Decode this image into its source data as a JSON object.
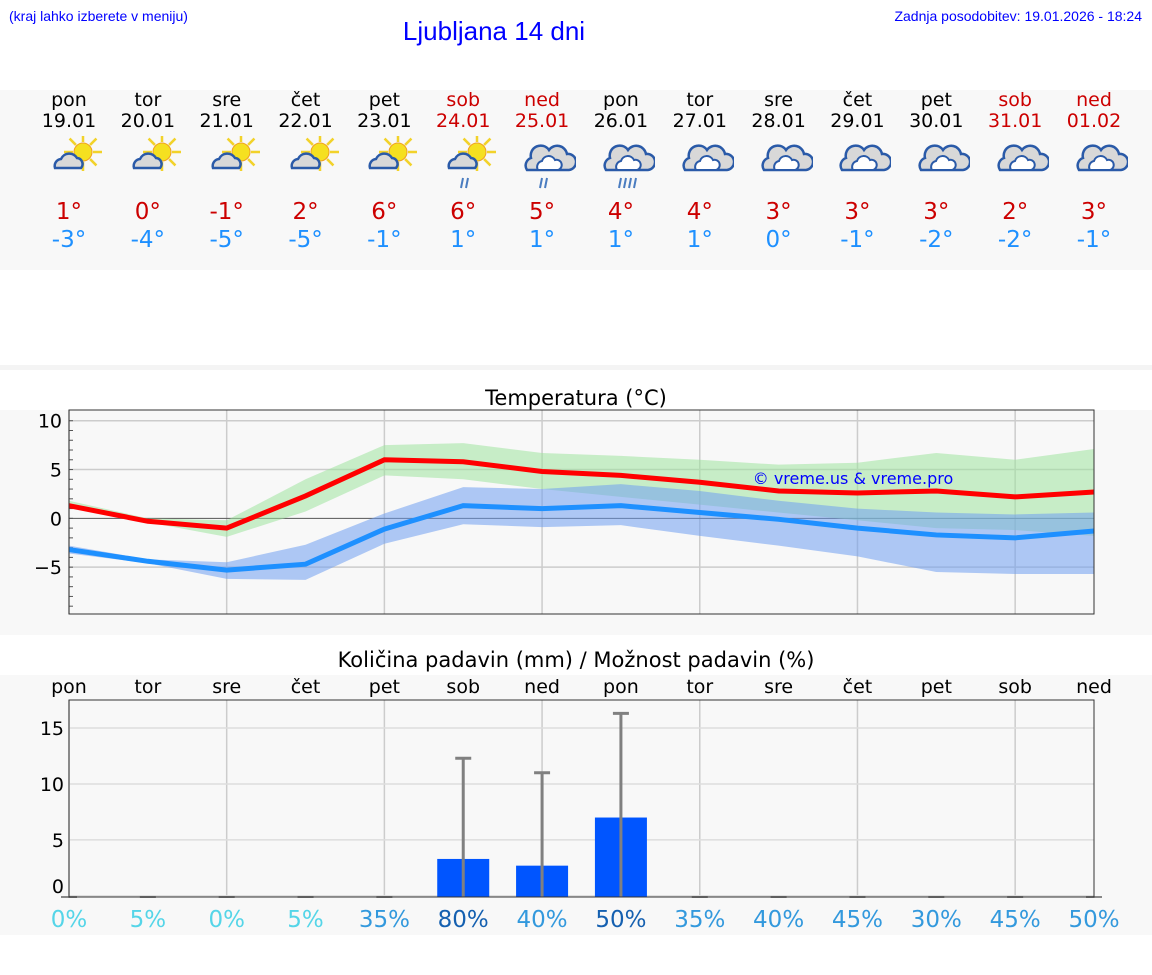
{
  "header": {
    "hint": "(kraj lahko izberete v meniju)",
    "title": "Ljubljana 14 dni",
    "updated": "Zadnja posodobitev: 19.01.2026 - 18:24"
  },
  "days": [
    {
      "name": "pon",
      "date": "19.01",
      "high": "1°",
      "low": "-3°",
      "icon": "partly-cloudy-icon",
      "weekend": false
    },
    {
      "name": "tor",
      "date": "20.01",
      "high": "0°",
      "low": "-4°",
      "icon": "partly-cloudy-icon",
      "weekend": false
    },
    {
      "name": "sre",
      "date": "21.01",
      "high": "-1°",
      "low": "-5°",
      "icon": "partly-cloudy-icon",
      "weekend": false
    },
    {
      "name": "čet",
      "date": "22.01",
      "high": "2°",
      "low": "-5°",
      "icon": "partly-cloudy-icon",
      "weekend": false
    },
    {
      "name": "pet",
      "date": "23.01",
      "high": "6°",
      "low": "-1°",
      "icon": "partly-cloudy-icon",
      "weekend": false
    },
    {
      "name": "sob",
      "date": "24.01",
      "high": "6°",
      "low": "1°",
      "icon": "partly-cloudy-rain-icon",
      "weekend": true
    },
    {
      "name": "ned",
      "date": "25.01",
      "high": "5°",
      "low": "1°",
      "icon": "cloudy-light-rain-icon",
      "weekend": true
    },
    {
      "name": "pon",
      "date": "26.01",
      "high": "4°",
      "low": "1°",
      "icon": "cloudy-rain-icon",
      "weekend": false
    },
    {
      "name": "tor",
      "date": "27.01",
      "high": "4°",
      "low": "1°",
      "icon": "cloudy-icon",
      "weekend": false
    },
    {
      "name": "sre",
      "date": "28.01",
      "high": "3°",
      "low": "0°",
      "icon": "cloudy-icon",
      "weekend": false
    },
    {
      "name": "čet",
      "date": "29.01",
      "high": "3°",
      "low": "-1°",
      "icon": "cloudy-icon",
      "weekend": false
    },
    {
      "name": "pet",
      "date": "30.01",
      "high": "3°",
      "low": "-2°",
      "icon": "cloudy-icon",
      "weekend": false
    },
    {
      "name": "sob",
      "date": "31.01",
      "high": "2°",
      "low": "-2°",
      "icon": "cloudy-icon",
      "weekend": true
    },
    {
      "name": "ned",
      "date": "01.02",
      "high": "3°",
      "low": "-1°",
      "icon": "cloudy-icon",
      "weekend": true
    }
  ],
  "colors": {
    "weekday": "#000000",
    "weekend": "#cc0000",
    "high": "#cc0000",
    "low": "#1e90ff"
  },
  "chart_data": [
    {
      "type": "line",
      "title": "Temperatura (°C)",
      "xlabel": "",
      "ylabel": "",
      "ylim": [
        -9.8,
        11.1
      ],
      "yticks": [
        10,
        5,
        0,
        -5
      ],
      "ytick_labels": [
        "10",
        "5",
        "0",
        "−5"
      ],
      "grid": true,
      "watermark": "© vreme.us & vreme.pro",
      "x": [
        "19.01",
        "20.01",
        "21.01",
        "22.01",
        "23.01",
        "24.01",
        "25.01",
        "26.01",
        "27.01",
        "28.01",
        "29.01",
        "30.01",
        "31.01",
        "01.02"
      ],
      "series": [
        {
          "role": "max",
          "color": "#ff0000",
          "values": [
            1.3,
            -0.3,
            -1.0,
            2.3,
            6.0,
            5.8,
            4.8,
            4.4,
            3.7,
            2.8,
            2.6,
            2.8,
            2.2,
            2.7
          ],
          "band_upper": [
            1.8,
            0.0,
            -0.2,
            4.0,
            7.5,
            7.7,
            6.7,
            6.4,
            6.0,
            5.5,
            5.7,
            6.7,
            6.0,
            7.1
          ],
          "band_lower": [
            1.1,
            -0.4,
            -1.9,
            0.7,
            4.4,
            4.0,
            3.0,
            2.2,
            1.4,
            0.6,
            -0.2,
            -1.0,
            -1.2,
            -1.8
          ],
          "band_color": "#9fe39f"
        },
        {
          "role": "min",
          "color": "#1e90ff",
          "values": [
            -3.2,
            -4.4,
            -5.3,
            -4.7,
            -1.1,
            1.3,
            1.0,
            1.3,
            0.6,
            -0.1,
            -1.0,
            -1.7,
            -2.0,
            -1.3
          ],
          "band_upper": [
            -2.8,
            -4.2,
            -4.5,
            -2.7,
            0.5,
            3.2,
            3.0,
            3.5,
            2.8,
            1.8,
            1.0,
            0.6,
            0.4,
            0.6
          ],
          "band_lower": [
            -3.6,
            -4.6,
            -6.2,
            -6.3,
            -2.6,
            -0.6,
            -0.9,
            -0.7,
            -1.8,
            -2.8,
            -3.9,
            -5.5,
            -5.7,
            -5.7
          ],
          "band_color": "#6f9ff0"
        }
      ]
    },
    {
      "type": "bar",
      "title": "Količina padavin (mm) / Možnost padavin (%)",
      "xlabel": "",
      "ylabel": "",
      "ylim": [
        -0.1,
        17.5
      ],
      "yticks": [
        15,
        10,
        5,
        0
      ],
      "grid": true,
      "categories": [
        "pon",
        "tor",
        "sre",
        "čet",
        "pet",
        "sob",
        "ned",
        "pon",
        "tor",
        "sre",
        "čet",
        "pet",
        "sob",
        "ned"
      ],
      "values": [
        0,
        0,
        0,
        0,
        0,
        3.3,
        2.7,
        7.0,
        0,
        0,
        0,
        0,
        0,
        0
      ],
      "error_max": [
        0,
        0,
        0,
        0,
        0,
        12.3,
        11.0,
        16.3,
        0,
        0,
        0,
        0,
        0,
        0
      ],
      "probability": [
        "0%",
        "5%",
        "0%",
        "5%",
        "35%",
        "80%",
        "40%",
        "50%",
        "35%",
        "40%",
        "45%",
        "30%",
        "45%",
        "50%"
      ],
      "probability_colors": [
        "#55d5e8",
        "#55d5e8",
        "#55d5e8",
        "#55d5e8",
        "#3399dd",
        "#1560b0",
        "#3399dd",
        "#1560b0",
        "#3399dd",
        "#3399dd",
        "#3399dd",
        "#3399dd",
        "#3399dd",
        "#3399dd"
      ],
      "bar_color": "#0055ff",
      "error_color": "#808080"
    }
  ]
}
